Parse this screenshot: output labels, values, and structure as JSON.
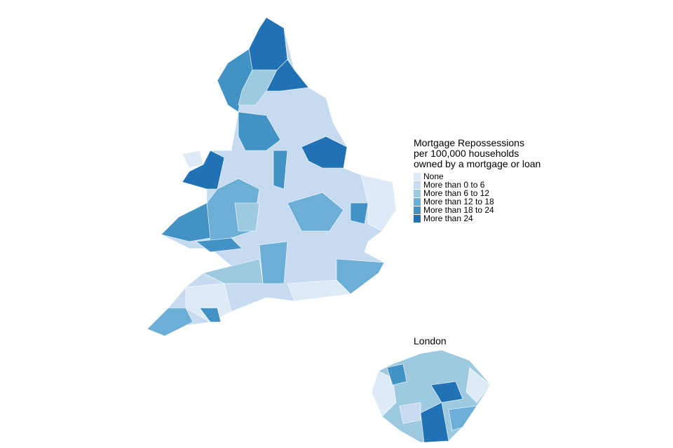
{
  "legend": {
    "title": [
      "Mortgage Repossessions",
      "per 100,000 households",
      "owned by a mortgage or loan"
    ],
    "items": [
      {
        "label": "None",
        "color": "#deebf7"
      },
      {
        "label": "More than 0 to 6",
        "color": "#c6dbef"
      },
      {
        "label": "More than 6 to 12",
        "color": "#9ecae1"
      },
      {
        "label": "More than 12 to 18",
        "color": "#6baed6"
      },
      {
        "label": "More than 18 to 24",
        "color": "#4292c6"
      },
      {
        "label": "More than 24",
        "color": "#2171b5"
      }
    ]
  },
  "inset": {
    "title": "London"
  }
}
